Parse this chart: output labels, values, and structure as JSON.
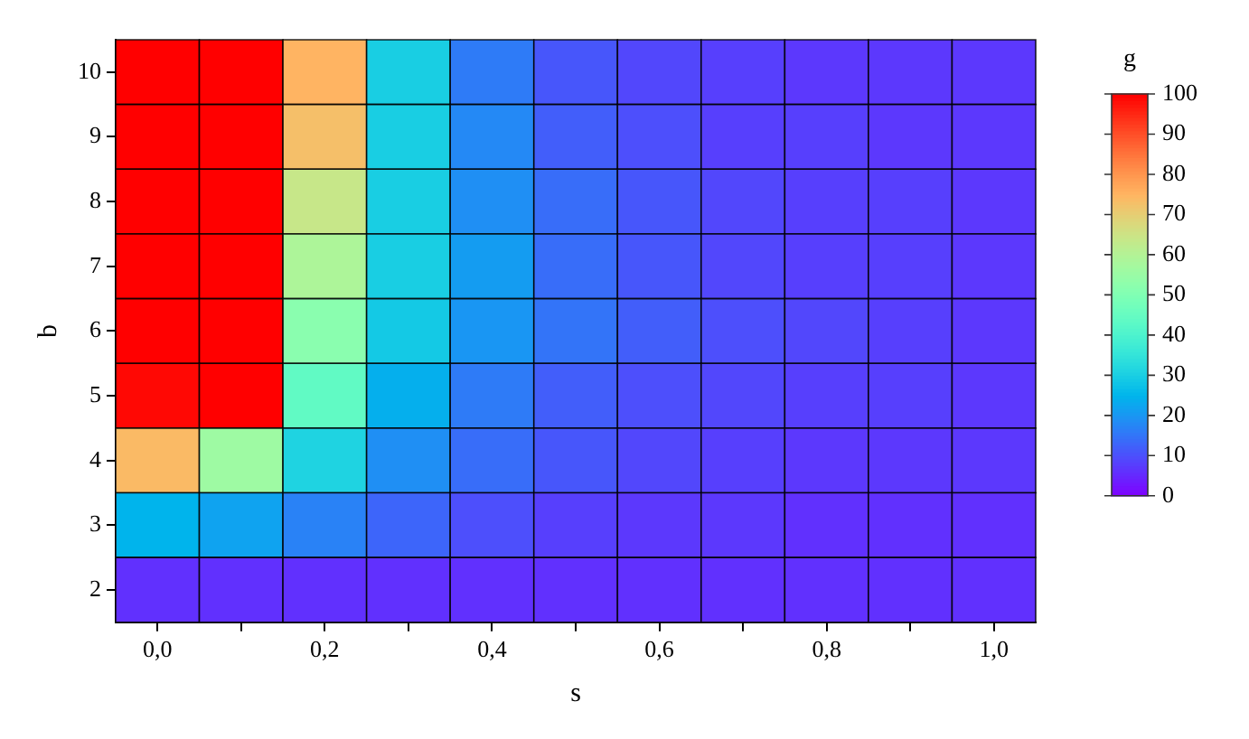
{
  "chart_data": {
    "type": "heatmap",
    "xlabel": "s",
    "ylabel": "b",
    "clabel": "g",
    "categories": [
      "0,0",
      null,
      "0,2",
      null,
      "0,4",
      null,
      "0,6",
      null,
      "0,8",
      null,
      "1,0"
    ],
    "y_categories": [
      "10",
      "9",
      "8",
      "7",
      "6",
      "5",
      "4",
      "3",
      "2"
    ],
    "cells": [
      [
        100,
        100,
        75,
        30,
        16,
        11,
        9,
        8,
        7,
        7,
        7
      ],
      [
        100,
        100,
        73,
        30,
        18,
        12,
        10,
        8,
        8,
        7,
        7
      ],
      [
        100,
        100,
        64,
        30,
        19,
        14,
        11,
        9,
        8,
        8,
        7
      ],
      [
        100,
        100,
        59,
        30,
        21,
        14,
        11,
        9,
        8,
        8,
        7
      ],
      [
        100,
        100,
        52,
        29,
        20,
        15,
        12,
        10,
        9,
        8,
        7
      ],
      [
        99,
        100,
        44,
        24,
        16,
        12,
        10,
        9,
        8,
        8,
        7
      ],
      [
        74,
        56,
        31,
        19,
        14,
        11,
        9,
        8,
        7,
        7,
        7
      ],
      [
        25,
        22,
        17,
        13,
        10,
        8,
        7,
        7,
        6,
        6,
        6
      ],
      [
        6,
        6,
        6,
        6,
        6,
        6,
        6,
        6,
        6,
        6,
        6
      ]
    ],
    "clim": [
      0,
      100
    ],
    "cticks": [
      0,
      10,
      20,
      30,
      40,
      50,
      60,
      70,
      80,
      90,
      100
    ]
  }
}
